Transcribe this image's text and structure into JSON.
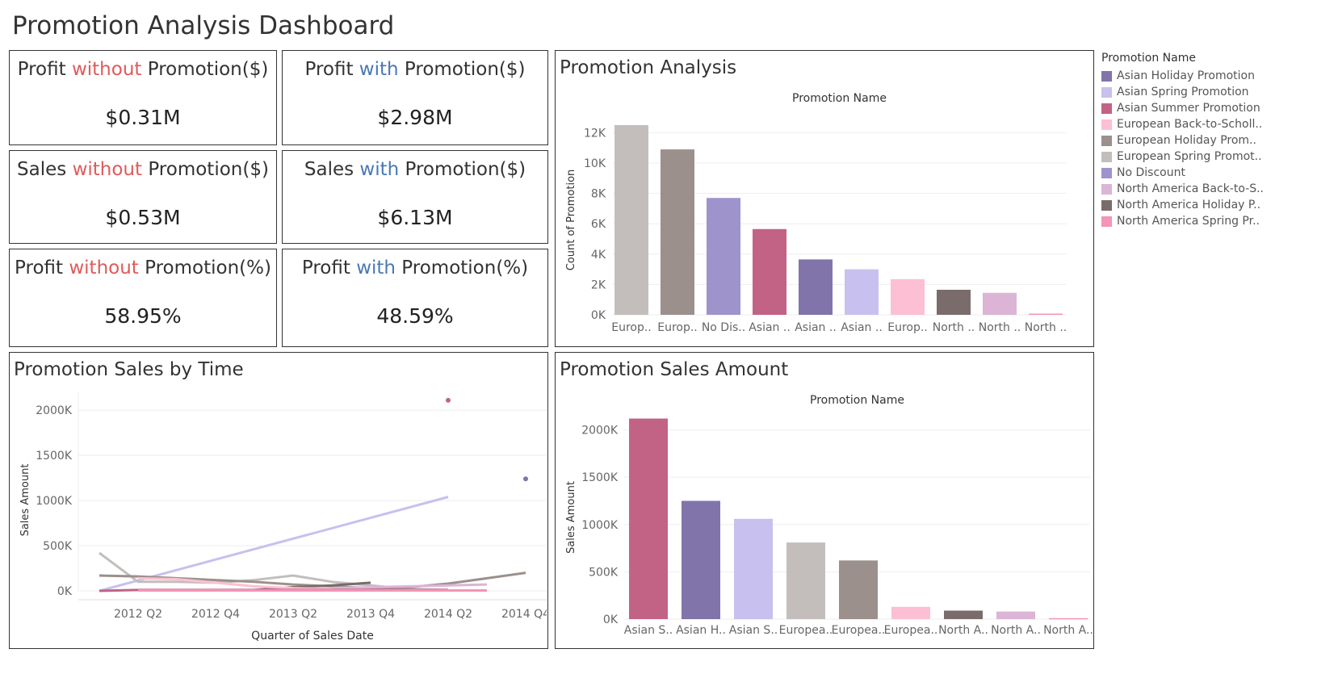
{
  "title": "Promotion Analysis Dashboard",
  "kpis": [
    {
      "pre": "Profit ",
      "word": "without",
      "post": " Promotion($)",
      "value": "$0.31M"
    },
    {
      "pre": "Profit ",
      "word": "with",
      "post": " Promotion($)",
      "value": "$2.98M"
    },
    {
      "pre": "Sales ",
      "word": "without",
      "post": " Promotion($)",
      "value": "$0.53M"
    },
    {
      "pre": "Sales ",
      "word": "with",
      "post": " Promotion($)",
      "value": "$6.13M"
    },
    {
      "pre": "Profit ",
      "word": "without",
      "post": " Promotion(%)",
      "value": "58.95%"
    },
    {
      "pre": "Profit ",
      "word": "with",
      "post": " Promotion(%)",
      "value": "48.59%"
    }
  ],
  "colors": {
    "without": "#e05a5a",
    "with": "#4a78b5"
  },
  "legend": {
    "title": "Promotion Name",
    "items": [
      {
        "label": "Asian Holiday Promotion",
        "color": "#8174aa"
      },
      {
        "label": "Asian Spring Promotion",
        "color": "#c8c0ee"
      },
      {
        "label": "Asian Summer Promotion",
        "color": "#c26385"
      },
      {
        "label": "European Back-to-Scholl..",
        "color": "#fdbfd4"
      },
      {
        "label": "European Holiday Prom..",
        "color": "#9b908c"
      },
      {
        "label": "European Spring Promot..",
        "color": "#c3bebc"
      },
      {
        "label": "No Discount",
        "color": "#9f93cb"
      },
      {
        "label": "North America Back-to-S..",
        "color": "#dcb4d6"
      },
      {
        "label": "North America Holiday P..",
        "color": "#7a6c6b"
      },
      {
        "label": "North America Spring Pr..",
        "color": "#f494b6"
      }
    ]
  },
  "chart_data": [
    {
      "panel_title": "Promotion Analysis",
      "type": "bar",
      "header": "Promotion Name",
      "ylabel": "Count of Promotion",
      "ylim": [
        0,
        12500
      ],
      "yticks": [
        0,
        2000,
        4000,
        6000,
        8000,
        10000,
        12000
      ],
      "ytick_labels": [
        "0K",
        "2K",
        "4K",
        "6K",
        "8K",
        "10K",
        "12K"
      ],
      "categories": [
        "Europ..",
        "Europ..",
        "No Dis..",
        "Asian ..",
        "Asian ..",
        "Asian ..",
        "Europ..",
        "North ..",
        "North ..",
        "North .."
      ],
      "values": [
        12500,
        10900,
        7700,
        5650,
        3650,
        3000,
        2350,
        1650,
        1450,
        80
      ],
      "colors": [
        "#c3bebc",
        "#9b908c",
        "#9f93cb",
        "#c26385",
        "#8174aa",
        "#c8c0ee",
        "#fdbfd4",
        "#7a6c6b",
        "#dcb4d6",
        "#f494b6"
      ]
    },
    {
      "panel_title": "Promotion Sales by Time",
      "type": "line",
      "xlabel": "Quarter of Sales Date",
      "ylabel": "Sales Amount",
      "ylim": [
        0,
        2100000
      ],
      "yticks": [
        0,
        500000,
        1000000,
        1500000,
        2000000
      ],
      "ytick_labels": [
        "0K",
        "500K",
        "1000K",
        "1500K",
        "2000K"
      ],
      "xtick_labels": [
        "2012 Q2",
        "2012 Q4",
        "2013 Q2",
        "2013 Q4",
        "2014 Q2",
        "2014 Q4"
      ],
      "series": [
        {
          "color": "#c8c0ee",
          "points": [
            [
              "2012 Q1",
              0
            ],
            [
              "2014 Q2",
              1040000
            ]
          ]
        },
        {
          "color": "#c3bebc",
          "points": [
            [
              "2012 Q1",
              420000
            ],
            [
              "2012 Q2",
              100000
            ],
            [
              "2012 Q3",
              100000
            ],
            [
              "2012 Q4",
              90000
            ],
            [
              "2013 Q1",
              120000
            ],
            [
              "2013 Q2",
              170000
            ],
            [
              "2013 Q3",
              100000
            ],
            [
              "2013 Q4",
              60000
            ],
            [
              "2014 Q1",
              20000
            ],
            [
              "2014 Q2",
              10000
            ]
          ]
        },
        {
          "color": "#9b908c",
          "points": [
            [
              "2012 Q1",
              170000
            ],
            [
              "2012 Q2",
              160000
            ],
            [
              "2012 Q3",
              140000
            ],
            [
              "2012 Q4",
              120000
            ],
            [
              "2013 Q1",
              100000
            ],
            [
              "2013 Q2",
              70000
            ],
            [
              "2013 Q3",
              50000
            ],
            [
              "2013 Q4",
              30000
            ],
            [
              "2014 Q1",
              40000
            ],
            [
              "2014 Q2",
              80000
            ],
            [
              "2014 Q3",
              140000
            ],
            [
              "2014 Q4",
              200000
            ]
          ]
        },
        {
          "color": "#7a6c6b",
          "points": [
            [
              "2013 Q1",
              10000
            ],
            [
              "2013 Q2",
              40000
            ],
            [
              "2013 Q3",
              60000
            ],
            [
              "2013 Q4",
              90000
            ]
          ]
        },
        {
          "color": "#fdbfd4",
          "points": [
            [
              "2012 Q2",
              140000
            ],
            [
              "2012 Q3",
              130000
            ],
            [
              "2012 Q4",
              90000
            ],
            [
              "2013 Q1",
              50000
            ],
            [
              "2013 Q2",
              30000
            ],
            [
              "2013 Q3",
              20000
            ],
            [
              "2013 Q4",
              10000
            ]
          ]
        },
        {
          "color": "#dcb4d6",
          "points": [
            [
              "2013 Q3",
              30000
            ],
            [
              "2013 Q4",
              40000
            ],
            [
              "2014 Q1",
              50000
            ],
            [
              "2014 Q2",
              60000
            ],
            [
              "2014 Q3",
              70000
            ]
          ]
        },
        {
          "color": "#c26385",
          "points": [
            [
              "2012 Q1",
              0
            ],
            [
              "2012 Q2",
              10000
            ],
            [
              "2012 Q3",
              10000
            ],
            [
              "2012 Q4",
              10000
            ],
            [
              "2013 Q1",
              10000
            ],
            [
              "2013 Q2",
              10000
            ],
            [
              "2013 Q3",
              10000
            ],
            [
              "2013 Q4",
              10000
            ],
            [
              "2014 Q1",
              10000
            ],
            [
              "2014 Q2",
              10000
            ]
          ]
        },
        {
          "color": "#f494b6",
          "points": [
            [
              "2012 Q2",
              5000
            ],
            [
              "2013 Q2",
              5000
            ],
            [
              "2014 Q1",
              5000
            ],
            [
              "2014 Q3",
              5000
            ]
          ]
        }
      ],
      "dots": [
        {
          "color": "#c26385",
          "x": "2014 Q2",
          "y": 2110000
        },
        {
          "color": "#8174aa",
          "x": "2014 Q4",
          "y": 1240000
        }
      ]
    },
    {
      "panel_title": "Promotion Sales Amount",
      "type": "bar",
      "header": "Promotion Name",
      "ylabel": "Sales Amount",
      "ylim": [
        0,
        2150000
      ],
      "yticks": [
        0,
        500000,
        1000000,
        1500000,
        2000000
      ],
      "ytick_labels": [
        "0K",
        "500K",
        "1000K",
        "1500K",
        "2000K"
      ],
      "categories": [
        "Asian S..",
        "Asian H..",
        "Asian S..",
        "Europea..",
        "Europea..",
        "Europea..",
        "North A..",
        "North A..",
        "North A.."
      ],
      "values": [
        2120000,
        1250000,
        1060000,
        810000,
        620000,
        130000,
        90000,
        80000,
        10000
      ],
      "colors": [
        "#c26385",
        "#8174aa",
        "#c8c0ee",
        "#c3bebc",
        "#9b908c",
        "#fdbfd4",
        "#7a6c6b",
        "#dcb4d6",
        "#f494b6"
      ]
    }
  ]
}
